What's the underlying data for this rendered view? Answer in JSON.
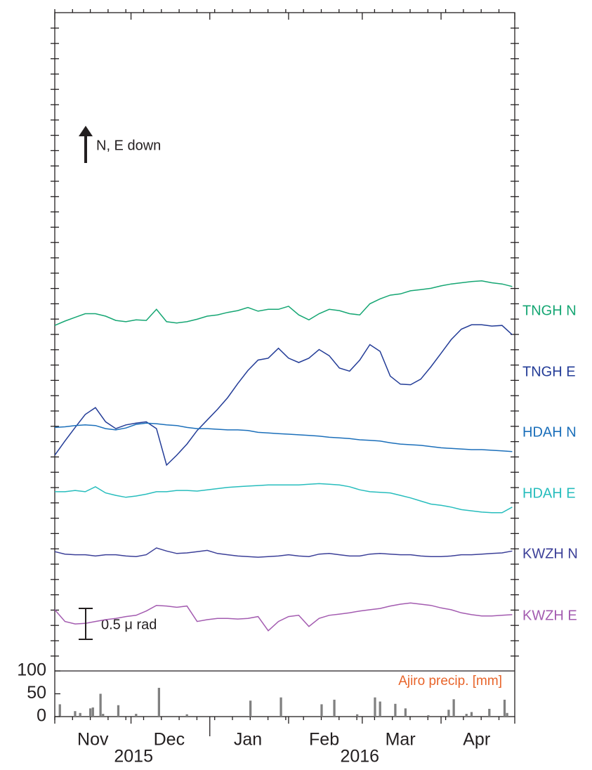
{
  "chart_data": [
    {
      "type": "line",
      "annotation": "N, E down",
      "scale_bar": {
        "value": 0.5,
        "label": "0.5 μ rad"
      },
      "xlim": [
        0,
        181
      ],
      "xticks": [
        0,
        30,
        61,
        92,
        121,
        152,
        181
      ],
      "ylim": [
        0,
        10.65
      ],
      "x": [
        0,
        4,
        8,
        12,
        16,
        20,
        24,
        28,
        32,
        36,
        40,
        44,
        48,
        52,
        56,
        60,
        64,
        68,
        72,
        76,
        80,
        84,
        88,
        92,
        96,
        100,
        104,
        108,
        112,
        116,
        120,
        124,
        128,
        132,
        136,
        140,
        144,
        148,
        152,
        156,
        160,
        164,
        168,
        172,
        176,
        180
      ],
      "series": [
        {
          "name": "TNGH N",
          "color": "#15a673",
          "values": [
            5.59,
            5.66,
            5.72,
            5.78,
            5.78,
            5.74,
            5.67,
            5.65,
            5.68,
            5.67,
            5.85,
            5.65,
            5.63,
            5.65,
            5.69,
            5.74,
            5.76,
            5.8,
            5.83,
            5.88,
            5.82,
            5.85,
            5.85,
            5.9,
            5.76,
            5.68,
            5.78,
            5.85,
            5.83,
            5.78,
            5.76,
            5.94,
            6.02,
            6.08,
            6.1,
            6.15,
            6.17,
            6.19,
            6.23,
            6.26,
            6.28,
            6.3,
            6.31,
            6.28,
            6.26,
            6.22
          ]
        },
        {
          "name": "TNGH E",
          "color": "#233c97",
          "values": [
            3.49,
            3.72,
            3.94,
            4.15,
            4.26,
            4.03,
            3.92,
            3.98,
            4.01,
            4.03,
            3.92,
            3.33,
            3.49,
            3.67,
            3.89,
            4.06,
            4.23,
            4.42,
            4.65,
            4.86,
            5.03,
            5.06,
            5.22,
            5.06,
            4.99,
            5.06,
            5.2,
            5.1,
            4.9,
            4.85,
            5.03,
            5.28,
            5.17,
            4.77,
            4.64,
            4.63,
            4.72,
            4.92,
            5.14,
            5.36,
            5.53,
            5.6,
            5.6,
            5.58,
            5.59,
            5.44
          ]
        },
        {
          "name": "HDAH N",
          "color": "#1b6fba",
          "values": [
            3.94,
            3.95,
            3.97,
            3.98,
            3.97,
            3.92,
            3.9,
            3.93,
            3.99,
            4.01,
            4.0,
            3.98,
            3.97,
            3.94,
            3.92,
            3.92,
            3.91,
            3.9,
            3.9,
            3.89,
            3.86,
            3.85,
            3.84,
            3.83,
            3.82,
            3.81,
            3.8,
            3.78,
            3.77,
            3.76,
            3.74,
            3.73,
            3.72,
            3.69,
            3.67,
            3.66,
            3.65,
            3.63,
            3.61,
            3.6,
            3.59,
            3.58,
            3.58,
            3.57,
            3.56,
            3.55
          ]
        },
        {
          "name": "HDAH E",
          "color": "#27bdbd",
          "values": [
            2.9,
            2.9,
            2.92,
            2.9,
            2.98,
            2.88,
            2.84,
            2.81,
            2.83,
            2.86,
            2.9,
            2.9,
            2.92,
            2.92,
            2.91,
            2.93,
            2.95,
            2.97,
            2.98,
            2.99,
            3.0,
            3.01,
            3.01,
            3.01,
            3.01,
            3.02,
            3.03,
            3.02,
            3.01,
            2.98,
            2.93,
            2.9,
            2.89,
            2.88,
            2.84,
            2.8,
            2.75,
            2.7,
            2.68,
            2.65,
            2.61,
            2.59,
            2.57,
            2.56,
            2.56,
            2.65
          ]
        },
        {
          "name": "KWZH N",
          "color": "#3b3f98",
          "values": [
            1.93,
            1.89,
            1.88,
            1.88,
            1.86,
            1.88,
            1.88,
            1.86,
            1.85,
            1.88,
            1.99,
            1.94,
            1.9,
            1.91,
            1.93,
            1.95,
            1.9,
            1.88,
            1.86,
            1.85,
            1.84,
            1.85,
            1.86,
            1.88,
            1.86,
            1.85,
            1.89,
            1.9,
            1.88,
            1.86,
            1.86,
            1.89,
            1.9,
            1.89,
            1.88,
            1.88,
            1.86,
            1.85,
            1.85,
            1.86,
            1.88,
            1.88,
            1.89,
            1.9,
            1.91,
            1.94
          ]
        },
        {
          "name": "KWZH E",
          "color": "#a35bb0",
          "values": [
            0.99,
            0.8,
            0.76,
            0.77,
            0.8,
            0.83,
            0.85,
            0.88,
            0.9,
            0.97,
            1.06,
            1.05,
            1.03,
            1.05,
            0.8,
            0.83,
            0.85,
            0.85,
            0.84,
            0.85,
            0.88,
            0.65,
            0.8,
            0.88,
            0.9,
            0.72,
            0.85,
            0.9,
            0.92,
            0.94,
            0.97,
            0.99,
            1.01,
            1.05,
            1.08,
            1.1,
            1.08,
            1.06,
            1.02,
            0.99,
            0.94,
            0.91,
            0.89,
            0.89,
            0.9,
            0.91
          ]
        }
      ]
    },
    {
      "type": "bar",
      "title": "Ajiro precip. [mm]",
      "color": "#808080",
      "xlim": [
        0,
        181
      ],
      "xticks": [
        0,
        30,
        61,
        92,
        121,
        152,
        181
      ],
      "month_labels": [
        {
          "value": 15,
          "label": "Nov"
        },
        {
          "value": 45,
          "label": "Dec"
        },
        {
          "value": 76,
          "label": "Jan"
        },
        {
          "value": 106,
          "label": "Feb"
        },
        {
          "value": 136,
          "label": "Mar"
        },
        {
          "value": 166,
          "label": "Apr"
        }
      ],
      "year_labels": [
        {
          "value": 31,
          "label": "2015"
        },
        {
          "value": 120,
          "label": "2016"
        }
      ],
      "ylim": [
        0,
        100
      ],
      "yticks": [
        0,
        50,
        100
      ],
      "x": [
        2,
        8,
        10,
        14,
        15,
        18,
        19,
        25,
        32,
        41,
        52,
        77,
        89,
        105,
        110,
        119,
        126,
        128,
        134,
        138,
        147,
        155,
        157,
        162,
        164,
        171,
        177,
        178
      ],
      "values": [
        27,
        12,
        8,
        18,
        20,
        50,
        6,
        25,
        6,
        63,
        5,
        35,
        42,
        27,
        37,
        5,
        42,
        33,
        28,
        18,
        3,
        15,
        38,
        6,
        10,
        17,
        37,
        8
      ]
    }
  ]
}
